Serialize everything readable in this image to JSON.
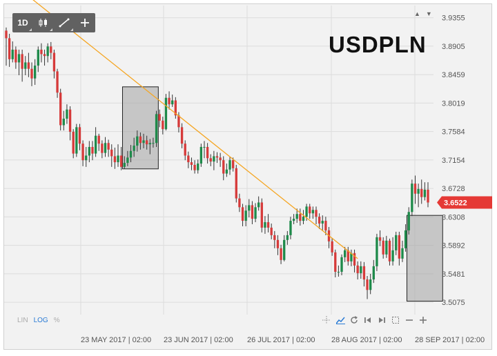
{
  "chart_data": {
    "type": "candlestick",
    "symbol": "USDPLN",
    "interval": "1D",
    "y_ticks": [
      "3.9355",
      "3.8905",
      "3.8459",
      "3.8019",
      "3.7584",
      "3.7154",
      "3.6728",
      "3.6308",
      "3.5892",
      "3.5481",
      "3.5075"
    ],
    "ylim": [
      3.49,
      3.955
    ],
    "x_labels": [
      "23 MAY 2017 | 02:00",
      "23 JUN 2017 | 02:00",
      "26 JUL 2017 | 02:00",
      "28 AUG 2017 | 02:00",
      "28 SEP 2017 | 02:00"
    ],
    "last_price": "3.6522",
    "scale_modes": [
      "LIN",
      "LOG",
      "%"
    ],
    "active_scale": "LOG",
    "trendline": {
      "from": [
        0,
        3.972
      ],
      "to": [
        110,
        3.57
      ],
      "color": "#f5a623"
    },
    "boxes": [
      {
        "from": 37,
        "to": 47,
        "low": 3.702,
        "high": 3.827
      },
      {
        "from": 126,
        "to": 136,
        "low": 3.509,
        "high": 3.633
      }
    ],
    "candles": [
      [
        3.915,
        3.903,
        3.92,
        3.86
      ],
      [
        3.903,
        3.87,
        3.91,
        3.858
      ],
      [
        3.87,
        3.885,
        3.898,
        3.865
      ],
      [
        3.885,
        3.865,
        3.89,
        3.855
      ],
      [
        3.865,
        3.878,
        3.885,
        3.845
      ],
      [
        3.878,
        3.855,
        3.885,
        3.835
      ],
      [
        3.855,
        3.865,
        3.875,
        3.845
      ],
      [
        3.865,
        3.855,
        3.88,
        3.842
      ],
      [
        3.855,
        3.84,
        3.865,
        3.828
      ],
      [
        3.84,
        3.86,
        3.87,
        3.83
      ],
      [
        3.86,
        3.885,
        3.89,
        3.85
      ],
      [
        3.885,
        3.878,
        3.895,
        3.865
      ],
      [
        3.878,
        3.875,
        3.885,
        3.86
      ],
      [
        3.875,
        3.89,
        3.895,
        3.865
      ],
      [
        3.89,
        3.88,
        3.897,
        3.87
      ],
      [
        3.88,
        3.851,
        3.885,
        3.84
      ],
      [
        3.851,
        3.818,
        3.855,
        3.81
      ],
      [
        3.818,
        3.768,
        3.824,
        3.76
      ],
      [
        3.768,
        3.778,
        3.79,
        3.76
      ],
      [
        3.778,
        3.792,
        3.8,
        3.77
      ],
      [
        3.792,
        3.758,
        3.797,
        3.745
      ],
      [
        3.758,
        3.725,
        3.762,
        3.718
      ],
      [
        3.725,
        3.765,
        3.77,
        3.72
      ],
      [
        3.765,
        3.74,
        3.77,
        3.73
      ],
      [
        3.74,
        3.715,
        3.745,
        3.706
      ],
      [
        3.715,
        3.722,
        3.735,
        3.705
      ],
      [
        3.722,
        3.735,
        3.744,
        3.712
      ],
      [
        3.735,
        3.725,
        3.744,
        3.715
      ],
      [
        3.725,
        3.752,
        3.765,
        3.72
      ],
      [
        3.752,
        3.74,
        3.755,
        3.729
      ],
      [
        3.74,
        3.726,
        3.745,
        3.718
      ],
      [
        3.726,
        3.741,
        3.75,
        3.72
      ],
      [
        3.741,
        3.731,
        3.746,
        3.72
      ],
      [
        3.731,
        3.721,
        3.739,
        3.705
      ],
      [
        3.721,
        3.712,
        3.734,
        3.702
      ],
      [
        3.712,
        3.722,
        3.739,
        3.705
      ],
      [
        3.722,
        3.705,
        3.735,
        3.7
      ],
      [
        3.705,
        3.711,
        3.721,
        3.702
      ],
      [
        3.711,
        3.719,
        3.729,
        3.706
      ],
      [
        3.719,
        3.729,
        3.738,
        3.712
      ],
      [
        3.729,
        3.737,
        3.749,
        3.72
      ],
      [
        3.737,
        3.751,
        3.76,
        3.728
      ],
      [
        3.751,
        3.741,
        3.757,
        3.731
      ],
      [
        3.741,
        3.745,
        3.755,
        3.733
      ],
      [
        3.745,
        3.739,
        3.752,
        3.731
      ],
      [
        3.739,
        3.741,
        3.747,
        3.724
      ],
      [
        3.741,
        3.741,
        3.749,
        3.734
      ],
      [
        3.741,
        3.785,
        3.79,
        3.735
      ],
      [
        3.785,
        3.775,
        3.792,
        3.765
      ],
      [
        3.775,
        3.762,
        3.781,
        3.754
      ],
      [
        3.762,
        3.81,
        3.816,
        3.76
      ],
      [
        3.81,
        3.8,
        3.82,
        3.792
      ],
      [
        3.8,
        3.806,
        3.815,
        3.796
      ],
      [
        3.806,
        3.783,
        3.811,
        3.778
      ],
      [
        3.783,
        3.765,
        3.788,
        3.757
      ],
      [
        3.765,
        3.74,
        3.771,
        3.733
      ],
      [
        3.74,
        3.722,
        3.745,
        3.715
      ],
      [
        3.722,
        3.712,
        3.728,
        3.703
      ],
      [
        3.712,
        3.708,
        3.719,
        3.7
      ],
      [
        3.708,
        3.7,
        3.715,
        3.695
      ],
      [
        3.7,
        3.71,
        3.716,
        3.695
      ],
      [
        3.71,
        3.735,
        3.74,
        3.705
      ],
      [
        3.735,
        3.735,
        3.744,
        3.718
      ],
      [
        3.735,
        3.718,
        3.741,
        3.71
      ],
      [
        3.718,
        3.713,
        3.724,
        3.706
      ],
      [
        3.713,
        3.721,
        3.729,
        3.7
      ],
      [
        3.721,
        3.719,
        3.727,
        3.711
      ],
      [
        3.719,
        3.715,
        3.726,
        3.705
      ],
      [
        3.715,
        3.695,
        3.721,
        3.685
      ],
      [
        3.695,
        3.701,
        3.71,
        3.69
      ],
      [
        3.701,
        3.715,
        3.72,
        3.693
      ],
      [
        3.715,
        3.703,
        3.719,
        3.698
      ],
      [
        3.703,
        3.658,
        3.708,
        3.652
      ],
      [
        3.658,
        3.645,
        3.665,
        3.638
      ],
      [
        3.645,
        3.625,
        3.65,
        3.617
      ],
      [
        3.625,
        3.64,
        3.648,
        3.617
      ],
      [
        3.64,
        3.648,
        3.657,
        3.63
      ],
      [
        3.648,
        3.628,
        3.654,
        3.62
      ],
      [
        3.628,
        3.645,
        3.651,
        3.623
      ],
      [
        3.645,
        3.652,
        3.661,
        3.64
      ],
      [
        3.652,
        3.615,
        3.658,
        3.608
      ],
      [
        3.615,
        3.623,
        3.632,
        3.606
      ],
      [
        3.623,
        3.615,
        3.635,
        3.608
      ],
      [
        3.615,
        3.604,
        3.621,
        3.598
      ],
      [
        3.604,
        3.597,
        3.61,
        3.585
      ],
      [
        3.597,
        3.585,
        3.604,
        3.575
      ],
      [
        3.585,
        3.568,
        3.59,
        3.562
      ],
      [
        3.568,
        3.597,
        3.604,
        3.566
      ],
      [
        3.597,
        3.604,
        3.61,
        3.59
      ],
      [
        3.604,
        3.625,
        3.631,
        3.598
      ],
      [
        3.625,
        3.628,
        3.635,
        3.62
      ],
      [
        3.628,
        3.635,
        3.643,
        3.622
      ],
      [
        3.635,
        3.625,
        3.643,
        3.618
      ],
      [
        3.625,
        3.631,
        3.641,
        3.62
      ],
      [
        3.631,
        3.646,
        3.65,
        3.625
      ],
      [
        3.646,
        3.636,
        3.65,
        3.628
      ],
      [
        3.636,
        3.641,
        3.646,
        3.628
      ],
      [
        3.641,
        3.631,
        3.646,
        3.62
      ],
      [
        3.631,
        3.621,
        3.636,
        3.613
      ],
      [
        3.621,
        3.625,
        3.633,
        3.61
      ],
      [
        3.625,
        3.611,
        3.631,
        3.604
      ],
      [
        3.611,
        3.595,
        3.616,
        3.585
      ],
      [
        3.595,
        3.579,
        3.6,
        3.574
      ],
      [
        3.579,
        3.551,
        3.583,
        3.543
      ],
      [
        3.551,
        3.551,
        3.56,
        3.544
      ],
      [
        3.551,
        3.572,
        3.576,
        3.546
      ],
      [
        3.572,
        3.582,
        3.587,
        3.565
      ],
      [
        3.582,
        3.566,
        3.587,
        3.56
      ],
      [
        3.566,
        3.578,
        3.583,
        3.559
      ],
      [
        3.578,
        3.56,
        3.583,
        3.55
      ],
      [
        3.56,
        3.549,
        3.566,
        3.54
      ],
      [
        3.549,
        3.559,
        3.566,
        3.541
      ],
      [
        3.559,
        3.54,
        3.565,
        3.53
      ],
      [
        3.54,
        3.525,
        3.545,
        3.512
      ],
      [
        3.525,
        3.54,
        3.548,
        3.519
      ],
      [
        3.54,
        3.559,
        3.568,
        3.535
      ],
      [
        3.559,
        3.601,
        3.606,
        3.552
      ],
      [
        3.601,
        3.596,
        3.611,
        3.588
      ],
      [
        3.596,
        3.576,
        3.601,
        3.57
      ],
      [
        3.576,
        3.596,
        3.603,
        3.571
      ],
      [
        3.596,
        3.566,
        3.599,
        3.56
      ],
      [
        3.566,
        3.582,
        3.601,
        3.56
      ],
      [
        3.582,
        3.604,
        3.609,
        3.575
      ],
      [
        3.604,
        3.57,
        3.609,
        3.56
      ],
      [
        3.57,
        3.585,
        3.596,
        3.565
      ],
      [
        3.585,
        3.611,
        3.62,
        3.58
      ],
      [
        3.611,
        3.638,
        3.645,
        3.605
      ],
      [
        3.638,
        3.68,
        3.686,
        3.632
      ],
      [
        3.68,
        3.665,
        3.692,
        3.65
      ],
      [
        3.665,
        3.672,
        3.68,
        3.645
      ],
      [
        3.672,
        3.66,
        3.686,
        3.65
      ],
      [
        3.66,
        3.671,
        3.682,
        3.655
      ],
      [
        3.671,
        3.652,
        3.682,
        3.645
      ]
    ]
  },
  "toolbar": {
    "interval_label": "1D",
    "chart_type_icon": "candles-icon",
    "draw_icon": "line-draw-icon",
    "add_icon": "plus-icon"
  },
  "bottom_tools": [
    "crosshair-icon",
    "trend-icon",
    "refresh-icon",
    "skip-back-icon",
    "skip-forward-icon",
    "select-box-icon",
    "zoom-out-icon",
    "zoom-in-icon"
  ],
  "colors": {
    "up": "#1e8a4a",
    "down": "#d63a3a",
    "trendline": "#f5a623",
    "price_badge": "#e53935",
    "box_fill": "#a8a8a8"
  }
}
